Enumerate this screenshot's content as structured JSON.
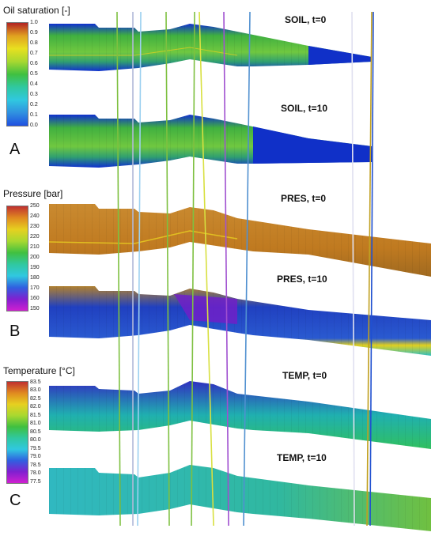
{
  "panels": [
    {
      "letter": "A",
      "colorbar": {
        "title": "Oil saturation [-]",
        "ticks": [
          "1.0",
          "0.9",
          "0.8",
          "0.7",
          "0.6",
          "0.5",
          "0.4",
          "0.3",
          "0.2",
          "0.1",
          "0.0"
        ],
        "gradient": [
          "#b22222",
          "#e0a020",
          "#e8e020",
          "#a8d830",
          "#40c040",
          "#30c8a0",
          "#30c8e0",
          "#3090e0",
          "#2050e0"
        ]
      },
      "slabs": [
        {
          "label": "SOIL, t=0"
        },
        {
          "label": "SOIL, t=10"
        }
      ]
    },
    {
      "letter": "B",
      "colorbar": {
        "title": "Pressure [bar]",
        "ticks": [
          "250",
          "240",
          "230",
          "220",
          "210",
          "200",
          "190",
          "180",
          "170",
          "160",
          "150"
        ],
        "gradient": [
          "#c03030",
          "#e08a20",
          "#e6d020",
          "#a8d830",
          "#40c040",
          "#30c8a0",
          "#30c8e0",
          "#3060e0",
          "#8020d0",
          "#d020d0"
        ]
      },
      "slabs": [
        {
          "label": "PRES, t=0"
        },
        {
          "label": "PRES, t=10"
        }
      ]
    },
    {
      "letter": "C",
      "colorbar": {
        "title": "Temperature [°C]",
        "ticks": [
          "83.5",
          "83.0",
          "82.5",
          "82.0",
          "81.5",
          "81.0",
          "80.5",
          "80.0",
          "79.5",
          "79.0",
          "78.5",
          "78.0",
          "77.5"
        ],
        "gradient": [
          "#c03030",
          "#e08a20",
          "#e6d020",
          "#a8d830",
          "#40c040",
          "#30c8a0",
          "#30c8e0",
          "#3060e0",
          "#8020d0",
          "#d020d0"
        ]
      },
      "slabs": [
        {
          "label": "TEMP, t=0"
        },
        {
          "label": "TEMP, t=10"
        }
      ]
    }
  ]
}
